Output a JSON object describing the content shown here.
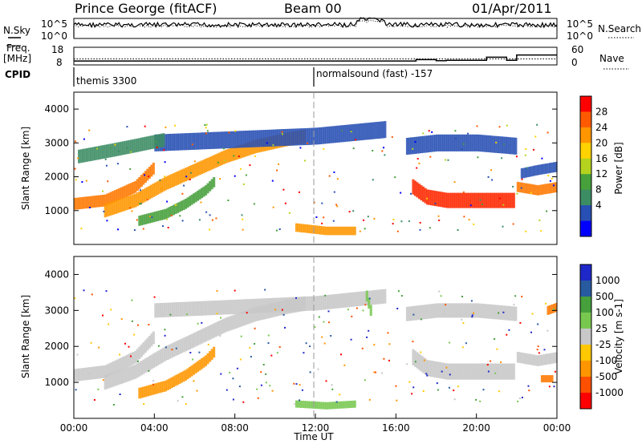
{
  "header": {
    "station": "Prince George (fitACF)",
    "beam": "Beam 00",
    "date": "01/Apr/2011"
  },
  "side_labels": {
    "nsky": "N.Sky",
    "freq_line1": "Freq.",
    "freq_line2": "[MHz]",
    "cpid": "CPID",
    "nsearch": "N.Search",
    "nave": "Nave"
  },
  "cpid_segments": [
    {
      "name": "themis 3300",
      "start_hour": 0
    },
    {
      "name": "normalsound (fast) -157",
      "start_hour": 12
    }
  ],
  "chart_data": [
    {
      "type": "line",
      "panel": "sky-noise",
      "series": [
        {
          "name": "N.Sky",
          "style": "solid"
        },
        {
          "name": "N.Search",
          "style": "dotted"
        }
      ],
      "ytick_labels": [
        "10^5",
        "10^0"
      ],
      "yright_tick_labels": [
        "10^5",
        "10^0"
      ]
    },
    {
      "type": "line",
      "panel": "frequency-nave",
      "series": [
        {
          "name": "Freq.",
          "style": "solid",
          "unit": "MHz",
          "x": [
            0,
            16.5,
            17.0,
            18.0,
            18.5,
            20.5,
            21.5,
            22.0,
            24.0
          ],
          "y": [
            10.2,
            10.2,
            11.0,
            10.4,
            10.6,
            12.4,
            10.6,
            13.6,
            13.6
          ]
        },
        {
          "name": "Nave",
          "style": "dotted",
          "x": [
            0,
            24
          ],
          "y": [
            11.4,
            11.4
          ]
        }
      ],
      "yticks_left": [
        "18",
        "8"
      ],
      "yticks_right": [
        "60",
        "0"
      ]
    },
    {
      "type": "heatmap",
      "panel": "power",
      "xlim": [
        0,
        24
      ],
      "ylim": [
        0,
        4500
      ],
      "ylabel": "Slant Range [km]",
      "yticks": [
        1000,
        2000,
        3000,
        4000
      ],
      "colorbar": {
        "label": "Power [dB]",
        "ticks": [
          "28",
          "24",
          "20",
          "16",
          "12",
          "8",
          "4"
        ],
        "colors": [
          "#ff0000",
          "#ff5a00",
          "#ff9600",
          "#ffd200",
          "#b4d21e",
          "#46a03c",
          "#3c8c64",
          "#2850b4",
          "#0000ff"
        ]
      },
      "bands": [
        {
          "x": [
            0.0,
            1.5,
            3.0,
            4.0
          ],
          "y": [
            1200,
            1300,
            1700,
            2300
          ],
          "width": 350,
          "color": "#ff7800"
        },
        {
          "x": [
            1.5,
            3.0,
            4.5,
            6.0,
            7.5,
            9.0,
            10.5,
            11.5
          ],
          "y": [
            1000,
            1300,
            1800,
            2200,
            2600,
            2900,
            3100,
            3200
          ],
          "width": 400,
          "color": "#ff9600"
        },
        {
          "x": [
            3.2,
            4.5,
            5.5,
            6.5,
            7.0
          ],
          "y": [
            700,
            900,
            1200,
            1600,
            1900
          ],
          "width": 300,
          "color": "#46a03c"
        },
        {
          "x": [
            4.0,
            8.0,
            12.0,
            15.5
          ],
          "y": [
            3000,
            3100,
            3200,
            3400
          ],
          "width": 500,
          "color": "#2850b4"
        },
        {
          "x": [
            0.2,
            2.0,
            4.5
          ],
          "y": [
            2600,
            2800,
            3100
          ],
          "width": 400,
          "color": "#3c8c64"
        },
        {
          "x": [
            16.8,
            17.5,
            18.5,
            19.5,
            20.5,
            21.5,
            21.9
          ],
          "y": [
            1700,
            1400,
            1300,
            1300,
            1300,
            1300,
            1300
          ],
          "width": 450,
          "color": "#ff2800"
        },
        {
          "x": [
            22.0,
            23.0,
            24.0
          ],
          "y": [
            1700,
            1600,
            1700
          ],
          "width": 300,
          "color": "#ff7800"
        },
        {
          "x": [
            22.2,
            23.0,
            24.0
          ],
          "y": [
            2100,
            2200,
            2300
          ],
          "width": 300,
          "color": "#2850b4"
        },
        {
          "x": [
            16.5,
            18.0,
            20.0,
            22.0
          ],
          "y": [
            2900,
            3000,
            3000,
            2900
          ],
          "width": 500,
          "color": "#2850b4"
        },
        {
          "x": [
            11.0,
            12.5,
            14.0
          ],
          "y": [
            500,
            400,
            400
          ],
          "width": 250,
          "color": "#ff9600"
        }
      ]
    },
    {
      "type": "heatmap",
      "panel": "velocity",
      "xlim": [
        0,
        24
      ],
      "ylim": [
        0,
        4500
      ],
      "ylabel": "Slant Range [km]",
      "xlabel": "Time UT",
      "xticks": [
        "00:00",
        "04:00",
        "08:00",
        "12:00",
        "16:00",
        "20:00",
        "00:00"
      ],
      "yticks": [
        1000,
        2000,
        3000,
        4000
      ],
      "colorbar": {
        "label": "Velocity [m s-1]",
        "ticks": [
          "1000",
          "500",
          "100",
          "25",
          "-25",
          "-100",
          "-500",
          "-1000"
        ],
        "colors": [
          "#1e28c8",
          "#285aa0",
          "#46a03c",
          "#78c850",
          "#c8c8c8",
          "#ffc800",
          "#ff9600",
          "#ff5000",
          "#ff0000"
        ]
      },
      "bands": [
        {
          "x": [
            0.0,
            1.5,
            3.0,
            4.0
          ],
          "y": [
            1200,
            1300,
            1700,
            2300
          ],
          "width": 350,
          "color": "#c8c8c8"
        },
        {
          "x": [
            1.5,
            3.0,
            4.5,
            6.0,
            7.5,
            9.0,
            10.5,
            11.5
          ],
          "y": [
            1000,
            1300,
            1800,
            2200,
            2600,
            2900,
            3100,
            3200
          ],
          "width": 400,
          "color": "#c8c8c8"
        },
        {
          "x": [
            3.2,
            4.5,
            5.5,
            6.5,
            7.0
          ],
          "y": [
            700,
            900,
            1200,
            1600,
            1900
          ],
          "width": 300,
          "color": "#ff9600"
        },
        {
          "x": [
            4.0,
            8.0,
            12.0,
            15.5
          ],
          "y": [
            3000,
            3100,
            3200,
            3400
          ],
          "width": 400,
          "color": "#c8c8c8"
        },
        {
          "x": [
            16.8,
            17.5,
            18.5,
            19.5,
            20.5,
            21.5,
            21.9
          ],
          "y": [
            1700,
            1400,
            1300,
            1300,
            1300,
            1300,
            1300
          ],
          "width": 450,
          "color": "#c8c8c8"
        },
        {
          "x": [
            22.0,
            23.0,
            24.0
          ],
          "y": [
            1700,
            1600,
            1700
          ],
          "width": 300,
          "color": "#c8c8c8"
        },
        {
          "x": [
            16.5,
            18.0,
            20.0,
            22.0
          ],
          "y": [
            2900,
            3000,
            3000,
            2900
          ],
          "width": 400,
          "color": "#c8c8c8"
        },
        {
          "x": [
            23.5,
            24.0
          ],
          "y": [
            3000,
            3100
          ],
          "width": 250,
          "color": "#ff7800"
        },
        {
          "x": [
            23.2,
            23.8
          ],
          "y": [
            1100,
            1100
          ],
          "width": 200,
          "color": "#ff7800"
        },
        {
          "x": [
            11.0,
            12.5,
            14.0
          ],
          "y": [
            400,
            350,
            400
          ],
          "width": 200,
          "color": "#78c850"
        },
        {
          "x": [
            14.5,
            14.8
          ],
          "y": [
            3400,
            2800
          ],
          "width": 300,
          "color": "#78c850"
        }
      ]
    }
  ]
}
